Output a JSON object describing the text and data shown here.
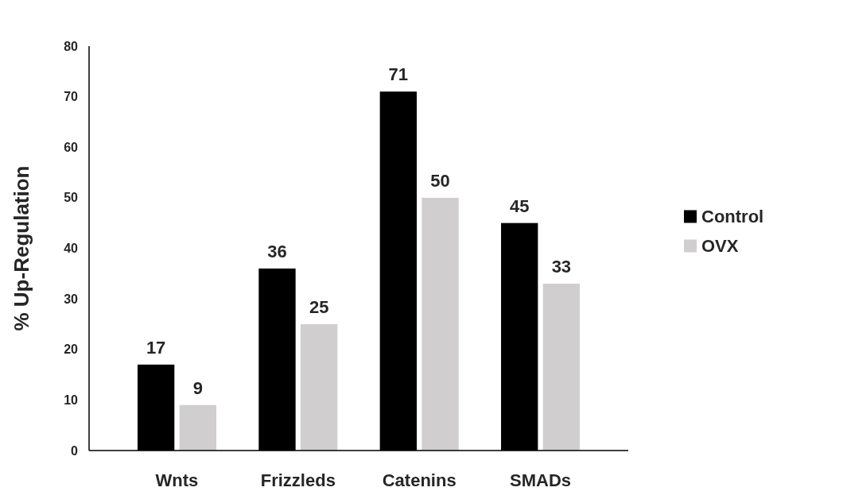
{
  "chart_data": {
    "type": "bar",
    "ylabel": "% Up-Regulation",
    "categories": [
      "Wnts",
      "Frizzleds",
      "Catenins",
      "SMADs"
    ],
    "series": [
      {
        "name": "Control",
        "color": "#000000",
        "values": [
          17,
          36,
          71,
          45
        ]
      },
      {
        "name": "OVX",
        "color": "#d0cece",
        "values": [
          9,
          25,
          50,
          33
        ]
      }
    ],
    "ylim": [
      0,
      80
    ],
    "yticks": [
      0,
      10,
      20,
      30,
      40,
      50,
      60,
      70,
      80
    ],
    "data_labels": true,
    "legend": "right",
    "grid": false
  }
}
